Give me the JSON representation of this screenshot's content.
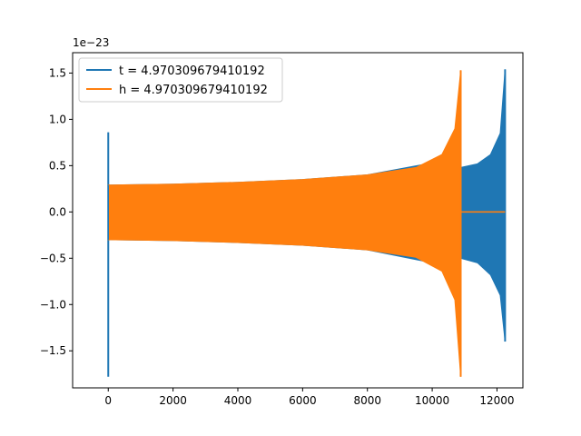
{
  "chart_data": {
    "type": "line",
    "title": "",
    "xlabel": "",
    "ylabel": "",
    "y_scale_label": "1e−23",
    "xlim": [
      -1100,
      12800
    ],
    "ylim": [
      -1.9,
      1.72
    ],
    "xticks": [
      0,
      2000,
      4000,
      6000,
      8000,
      10000,
      12000
    ],
    "xtick_labels": [
      "0",
      "2000",
      "4000",
      "6000",
      "8000",
      "10000",
      "12000"
    ],
    "yticks": [
      -1.5,
      -1.0,
      -0.5,
      0.0,
      0.5,
      1.0,
      1.5
    ],
    "ytick_labels": [
      "−1.5",
      "−1.0",
      "−0.5",
      "0.0",
      "0.5",
      "1.0",
      "1.5"
    ],
    "grid": false,
    "legend_position": "top-left",
    "series": [
      {
        "name": "t = 4.970309679410192",
        "color": "#1f77b4",
        "spike": {
          "x": 0,
          "min": -1.78,
          "max": 0.86
        },
        "envelope": [
          {
            "x": 0,
            "upper": 0.29,
            "lower": -0.3
          },
          {
            "x": 2000,
            "upper": 0.3,
            "lower": -0.31
          },
          {
            "x": 4000,
            "upper": 0.32,
            "lower": -0.33
          },
          {
            "x": 6000,
            "upper": 0.35,
            "lower": -0.36
          },
          {
            "x": 8000,
            "upper": 0.4,
            "lower": -0.41
          },
          {
            "x": 10000,
            "upper": 0.53,
            "lower": -0.55
          },
          {
            "x": 10880,
            "upper": 0.48,
            "lower": -0.5
          },
          {
            "x": 11400,
            "upper": 0.52,
            "lower": -0.55
          },
          {
            "x": 11800,
            "upper": 0.62,
            "lower": -0.68
          },
          {
            "x": 12100,
            "upper": 0.85,
            "lower": -0.9
          },
          {
            "x": 12250,
            "upper": 1.54,
            "lower": -1.4
          }
        ],
        "end_x": 12250
      },
      {
        "name": "h = 4.970309679410192",
        "color": "#ff7f0e",
        "envelope": [
          {
            "x": 0,
            "upper": 0.29,
            "lower": -0.3
          },
          {
            "x": 2000,
            "upper": 0.3,
            "lower": -0.31
          },
          {
            "x": 4000,
            "upper": 0.32,
            "lower": -0.33
          },
          {
            "x": 6000,
            "upper": 0.35,
            "lower": -0.36
          },
          {
            "x": 8000,
            "upper": 0.4,
            "lower": -0.41
          },
          {
            "x": 9500,
            "upper": 0.48,
            "lower": -0.49
          },
          {
            "x": 10300,
            "upper": 0.62,
            "lower": -0.64
          },
          {
            "x": 10700,
            "upper": 0.9,
            "lower": -0.95
          },
          {
            "x": 10880,
            "upper": 1.53,
            "lower": -1.78
          }
        ],
        "flat_from": 10880,
        "flat_to": 12250
      }
    ]
  }
}
